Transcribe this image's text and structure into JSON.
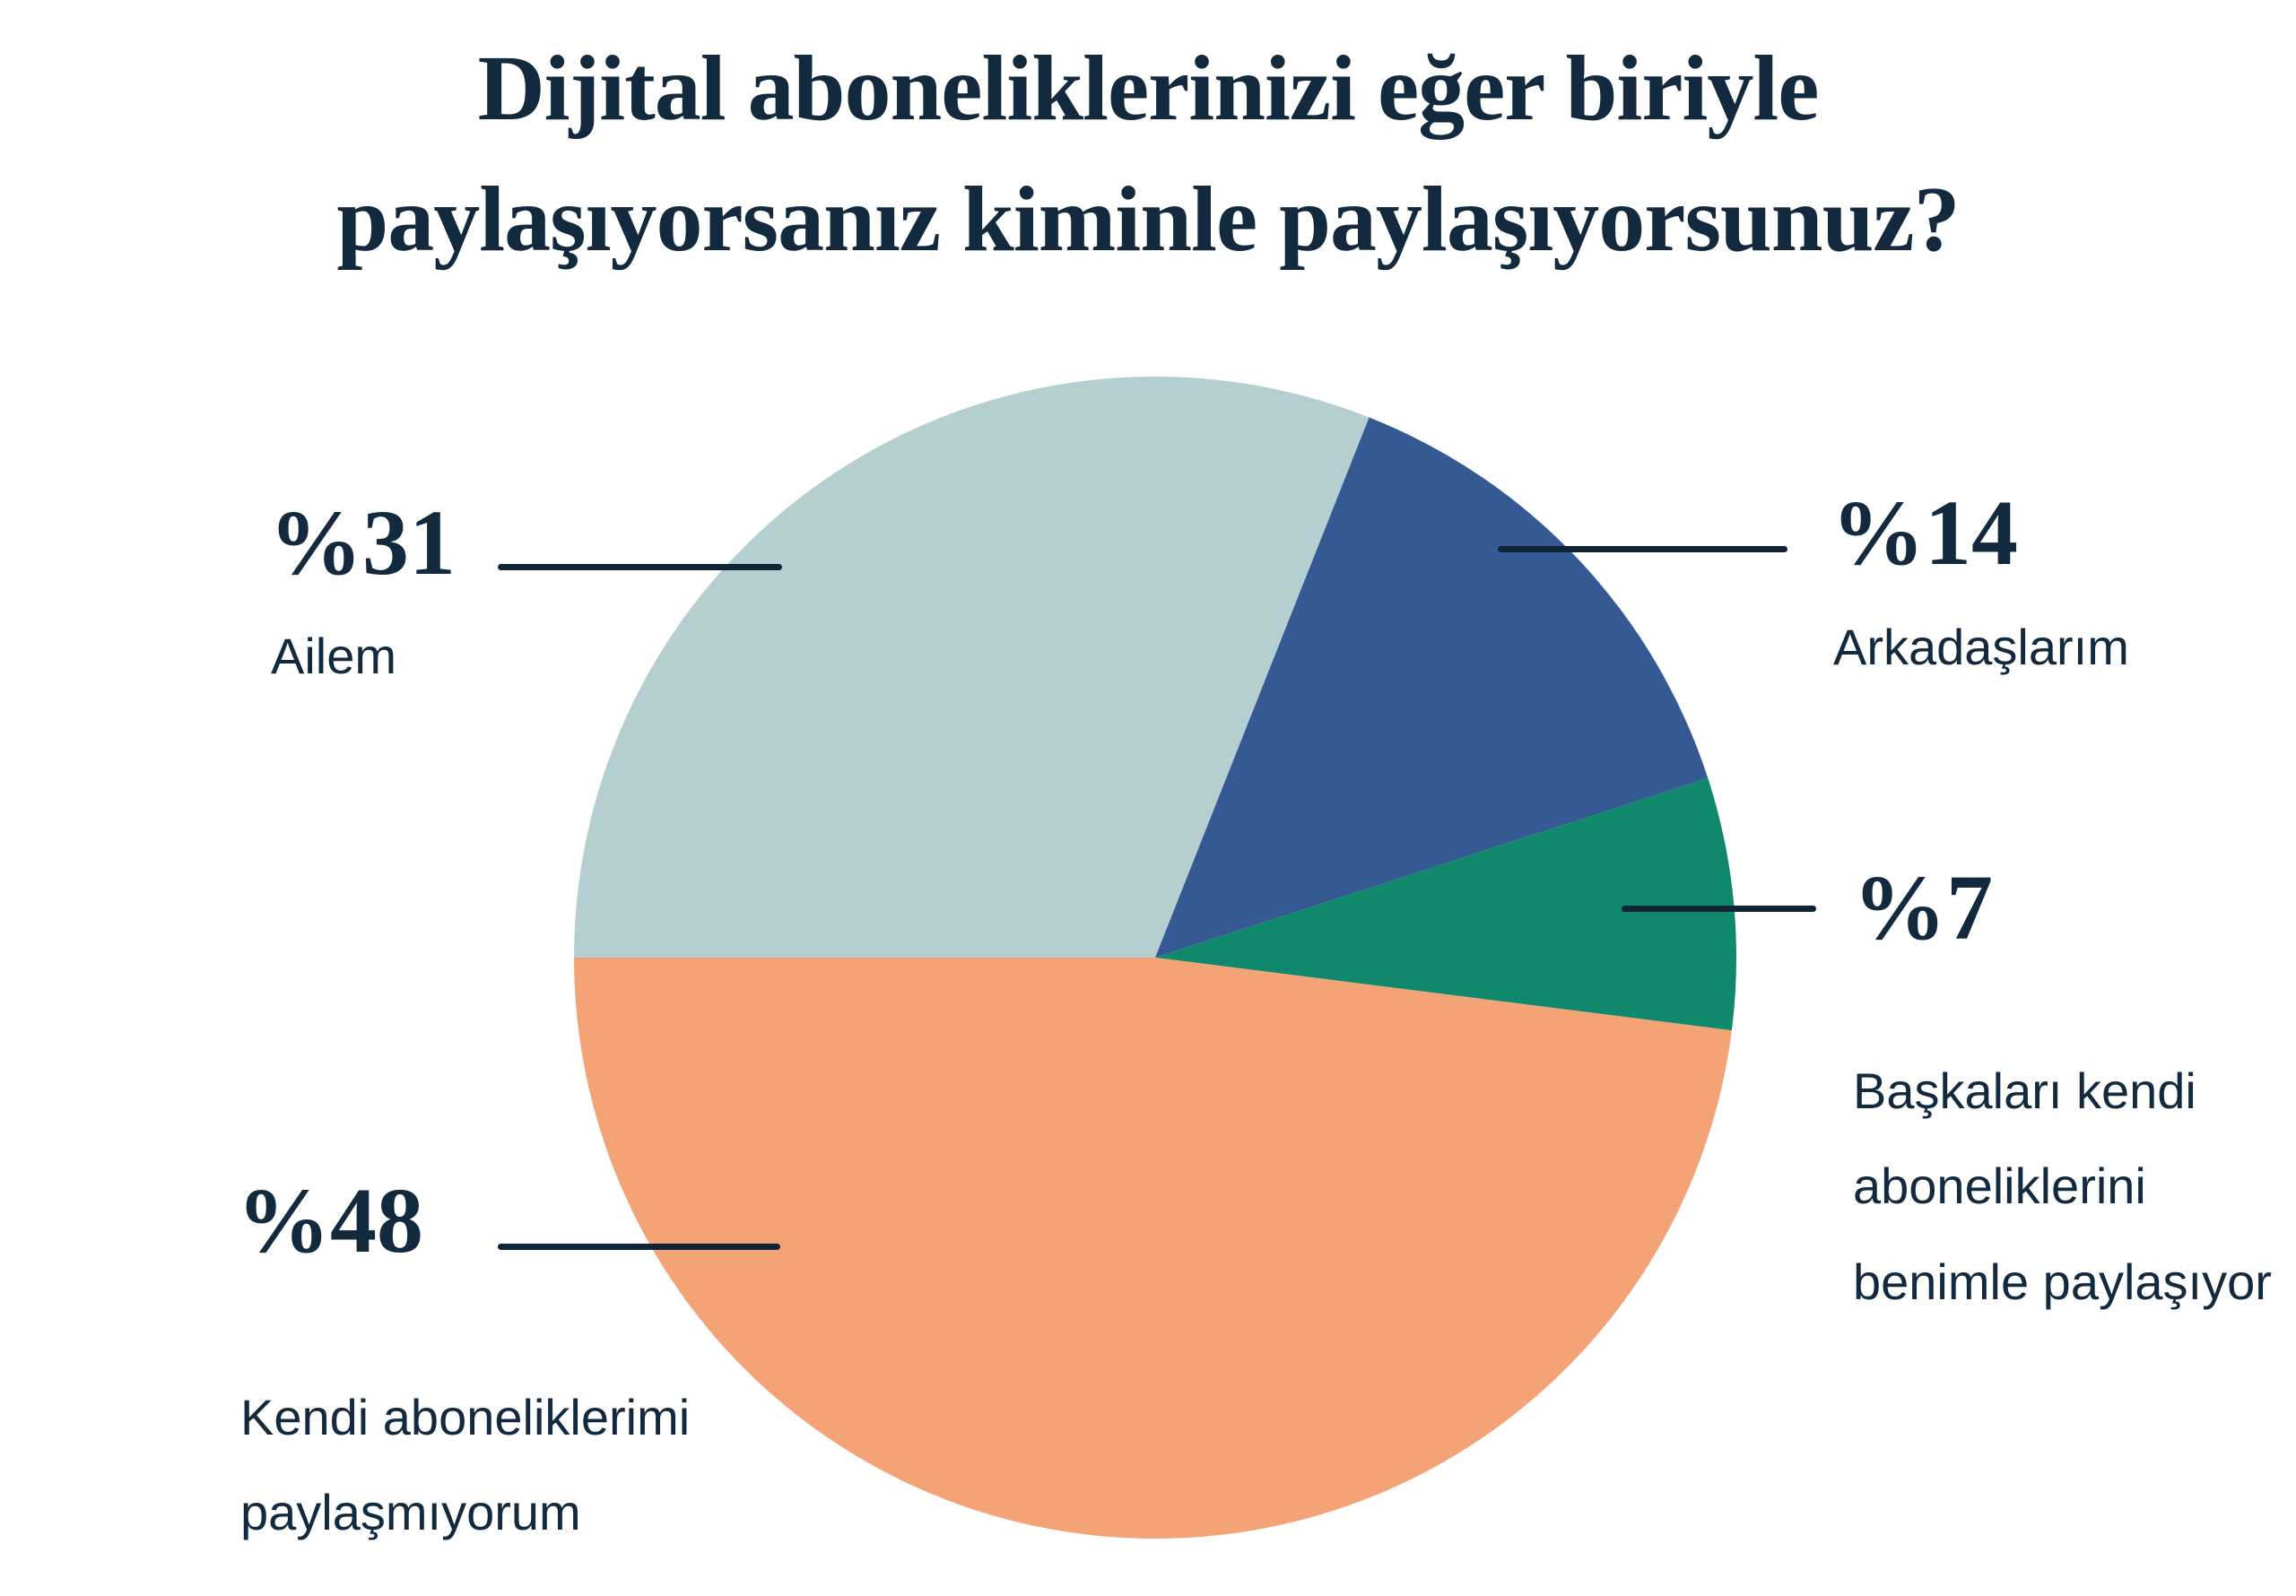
{
  "title": {
    "line1": "Dijital aboneliklerinizi eğer biriyle",
    "line2": "paylaşıyorsanız kiminle paylaşıyorsunuz?"
  },
  "colors": {
    "background": "#FFFFFF",
    "text_navy": "#132A3E",
    "leader_line": "#0F2435",
    "slice_ailem": "#B5CFD0",
    "slice_arkadaslarim": "#355A93",
    "slice_baskalari": "#10886B",
    "slice_kendi": "#F3A376"
  },
  "chart_data": {
    "type": "pie",
    "title": "Dijital aboneliklerinizi eğer biriyle paylaşıyorsanız kiminle paylaşıyorsunuz?",
    "start_angle_deg": 270,
    "direction": "clockwise",
    "legend_position": "callouts-with-leader-lines",
    "total": 100,
    "slices": [
      {
        "label": "Ailem",
        "value": 31,
        "pct_label": "%31",
        "color": "#B5CFD0"
      },
      {
        "label": "Arkadaşlarım",
        "value": 14,
        "pct_label": "%14",
        "color": "#355A93"
      },
      {
        "label": "Başkaları kendi aboneliklerini benimle paylaşıyor",
        "label_display": "Başkaları kendi\naboneliklerini\nbenimle paylaşıyor",
        "value": 7,
        "pct_label": "%7",
        "color": "#10886B"
      },
      {
        "label": "Kendi aboneliklerimi paylaşmıyorum",
        "label_display": "Kendi aboneliklerimi\npaylaşmıyorum",
        "value": 48,
        "pct_label": "%48",
        "color": "#F3A376"
      }
    ]
  }
}
